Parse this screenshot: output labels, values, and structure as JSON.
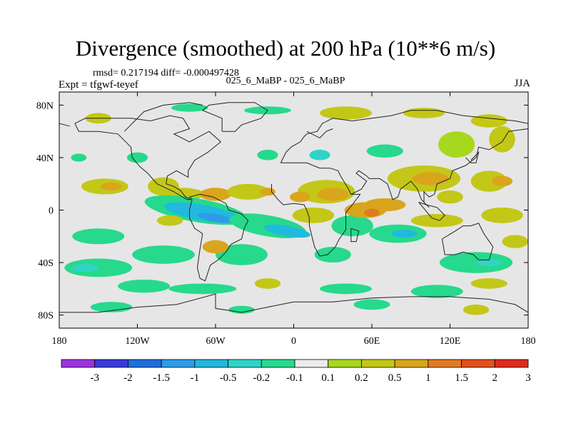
{
  "chart_data": {
    "type": "heatmap",
    "title": "Divergence (smoothed) at 200 hPa (10**6 m/s)",
    "stats_line": "rmsd= 0.217194 diff= -0.000497428",
    "expt_label": "Expt = tfgwf-teyef",
    "cases_label": "025_6_MaBP - 025_6_MaBP",
    "season": "JJA",
    "x_range": [
      -180,
      180
    ],
    "y_range": [
      -90,
      90
    ],
    "x_ticks": [
      {
        "value": -180,
        "label": "180"
      },
      {
        "value": -120,
        "label": "120W"
      },
      {
        "value": -60,
        "label": "60W"
      },
      {
        "value": 0,
        "label": "0"
      },
      {
        "value": 60,
        "label": "60E"
      },
      {
        "value": 120,
        "label": "120E"
      },
      {
        "value": 180,
        "label": "180"
      }
    ],
    "y_ticks": [
      {
        "value": 80,
        "label": "80N"
      },
      {
        "value": 40,
        "label": "40N"
      },
      {
        "value": 0,
        "label": "0"
      },
      {
        "value": -40,
        "label": "40S"
      },
      {
        "value": -80,
        "label": "80S"
      }
    ],
    "levels": [
      "-3",
      "-2",
      "-1.5",
      "-1",
      "-0.5",
      "-0.2",
      "-0.1",
      "0.1",
      "0.2",
      "0.5",
      "1",
      "1.5",
      "2",
      "3"
    ],
    "colors": [
      "#9c33e0",
      "#3a3ad8",
      "#1f6ee0",
      "#2f9be8",
      "#21b9dd",
      "#2fd4c6",
      "#26d98c",
      "#ececec",
      "#a6d81e",
      "#c3c717",
      "#d9a51c",
      "#e07a22",
      "#e2501d",
      "#e02a1f"
    ],
    "blobs": [
      {
        "lon": -150,
        "lat": 70,
        "rx": 10,
        "ry": 4,
        "cls": 9
      },
      {
        "lon": -80,
        "lat": 78,
        "rx": 14,
        "ry": 3,
        "cls": 6
      },
      {
        "lon": -20,
        "lat": 76,
        "rx": 18,
        "ry": 3,
        "cls": 6
      },
      {
        "lon": 40,
        "lat": 74,
        "rx": 20,
        "ry": 5,
        "cls": 9
      },
      {
        "lon": 100,
        "lat": 74,
        "rx": 16,
        "ry": 4,
        "cls": 9
      },
      {
        "lon": 150,
        "lat": 68,
        "rx": 14,
        "ry": 5,
        "cls": 9
      },
      {
        "lon": 160,
        "lat": 54,
        "rx": 10,
        "ry": 10,
        "cls": 9
      },
      {
        "lon": 125,
        "lat": 50,
        "rx": 14,
        "ry": 10,
        "cls": 8
      },
      {
        "lon": 70,
        "lat": 45,
        "rx": 14,
        "ry": 5,
        "cls": 6
      },
      {
        "lon": 20,
        "lat": 42,
        "rx": 8,
        "ry": 4,
        "cls": 5
      },
      {
        "lon": -20,
        "lat": 42,
        "rx": 8,
        "ry": 4,
        "cls": 6
      },
      {
        "lon": -120,
        "lat": 40,
        "rx": 8,
        "ry": 4,
        "cls": 6
      },
      {
        "lon": -165,
        "lat": 40,
        "rx": 6,
        "ry": 3,
        "cls": 6
      },
      {
        "lon": -145,
        "lat": 18,
        "rx": 18,
        "ry": 6,
        "cls": 9
      },
      {
        "lon": -140,
        "lat": 18,
        "rx": 8,
        "ry": 3,
        "cls": 10
      },
      {
        "lon": -100,
        "lat": 18,
        "rx": 12,
        "ry": 7,
        "cls": 9
      },
      {
        "lon": -85,
        "lat": 12,
        "rx": 16,
        "ry": 5,
        "cls": 9
      },
      {
        "lon": -60,
        "lat": 12,
        "rx": 12,
        "ry": 5,
        "cls": 10
      },
      {
        "lon": -35,
        "lat": 14,
        "rx": 16,
        "ry": 6,
        "cls": 9
      },
      {
        "lon": -20,
        "lat": 14,
        "rx": 6,
        "ry": 3,
        "cls": 10
      },
      {
        "lon": 25,
        "lat": 14,
        "rx": 22,
        "ry": 9,
        "cls": 9
      },
      {
        "lon": 30,
        "lat": 12,
        "rx": 12,
        "ry": 5,
        "cls": 10
      },
      {
        "lon": 5,
        "lat": 10,
        "rx": 8,
        "ry": 4,
        "cls": 10
      },
      {
        "lon": 100,
        "lat": 24,
        "rx": 28,
        "ry": 10,
        "cls": 9
      },
      {
        "lon": 105,
        "lat": 24,
        "rx": 14,
        "ry": 5,
        "cls": 10
      },
      {
        "lon": 150,
        "lat": 22,
        "rx": 14,
        "ry": 8,
        "cls": 9
      },
      {
        "lon": 160,
        "lat": 22,
        "rx": 8,
        "ry": 4,
        "cls": 10
      },
      {
        "lon": 70,
        "lat": 4,
        "rx": 16,
        "ry": 5,
        "cls": 10
      },
      {
        "lon": 120,
        "lat": 10,
        "rx": 10,
        "ry": 5,
        "cls": 9
      },
      {
        "lon": -75,
        "lat": 0,
        "rx": 40,
        "ry": 9,
        "cls": 6,
        "rot": 10
      },
      {
        "lon": -70,
        "lat": -2,
        "rx": 30,
        "ry": 6,
        "cls": 4,
        "rot": 10
      },
      {
        "lon": -60,
        "lat": -6,
        "rx": 14,
        "ry": 3,
        "cls": 3,
        "rot": 10
      },
      {
        "lon": -20,
        "lat": -12,
        "rx": 30,
        "ry": 8,
        "cls": 6,
        "rot": 10
      },
      {
        "lon": -5,
        "lat": -16,
        "rx": 18,
        "ry": 4,
        "cls": 4,
        "rot": 10
      },
      {
        "lon": 45,
        "lat": -12,
        "rx": 16,
        "ry": 8,
        "cls": 6
      },
      {
        "lon": 80,
        "lat": -18,
        "rx": 22,
        "ry": 7,
        "cls": 6
      },
      {
        "lon": 85,
        "lat": -18,
        "rx": 10,
        "ry": 3,
        "cls": 4
      },
      {
        "lon": -150,
        "lat": -20,
        "rx": 20,
        "ry": 6,
        "cls": 6
      },
      {
        "lon": -100,
        "lat": -34,
        "rx": 24,
        "ry": 7,
        "cls": 6
      },
      {
        "lon": -40,
        "lat": -34,
        "rx": 20,
        "ry": 8,
        "cls": 6
      },
      {
        "lon": 30,
        "lat": -34,
        "rx": 14,
        "ry": 6,
        "cls": 6
      },
      {
        "lon": 140,
        "lat": -40,
        "rx": 28,
        "ry": 8,
        "cls": 6
      },
      {
        "lon": 150,
        "lat": -40,
        "rx": 10,
        "ry": 3,
        "cls": 5
      },
      {
        "lon": -150,
        "lat": -44,
        "rx": 26,
        "ry": 7,
        "cls": 6
      },
      {
        "lon": -160,
        "lat": -44,
        "rx": 10,
        "ry": 3,
        "cls": 5
      },
      {
        "lon": -60,
        "lat": -28,
        "rx": 10,
        "ry": 5,
        "cls": 10
      },
      {
        "lon": 15,
        "lat": -4,
        "rx": 16,
        "ry": 6,
        "cls": 9
      },
      {
        "lon": 55,
        "lat": 0,
        "rx": 16,
        "ry": 6,
        "cls": 10
      },
      {
        "lon": 60,
        "lat": -2,
        "rx": 6,
        "ry": 3,
        "cls": 11
      },
      {
        "lon": -95,
        "lat": -8,
        "rx": 10,
        "ry": 4,
        "cls": 9
      },
      {
        "lon": 110,
        "lat": -8,
        "rx": 20,
        "ry": 5,
        "cls": 9
      },
      {
        "lon": 160,
        "lat": -4,
        "rx": 16,
        "ry": 6,
        "cls": 9
      },
      {
        "lon": 170,
        "lat": -24,
        "rx": 10,
        "ry": 5,
        "cls": 9
      },
      {
        "lon": -115,
        "lat": -58,
        "rx": 20,
        "ry": 5,
        "cls": 6
      },
      {
        "lon": -70,
        "lat": -60,
        "rx": 26,
        "ry": 4,
        "cls": 6
      },
      {
        "lon": -20,
        "lat": -56,
        "rx": 10,
        "ry": 4,
        "cls": 9
      },
      {
        "lon": 40,
        "lat": -60,
        "rx": 20,
        "ry": 4,
        "cls": 6
      },
      {
        "lon": 110,
        "lat": -62,
        "rx": 20,
        "ry": 5,
        "cls": 6
      },
      {
        "lon": 150,
        "lat": -56,
        "rx": 14,
        "ry": 4,
        "cls": 9
      },
      {
        "lon": -140,
        "lat": -74,
        "rx": 16,
        "ry": 4,
        "cls": 6
      },
      {
        "lon": -40,
        "lat": -76,
        "rx": 10,
        "ry": 3,
        "cls": 6
      },
      {
        "lon": 60,
        "lat": -72,
        "rx": 14,
        "ry": 4,
        "cls": 6
      },
      {
        "lon": 140,
        "lat": -76,
        "rx": 10,
        "ry": 4,
        "cls": 9
      }
    ],
    "coastlines": [
      [
        [
          -168,
          66
        ],
        [
          -160,
          70
        ],
        [
          -140,
          70
        ],
        [
          -125,
          70
        ],
        [
          -110,
          68
        ],
        [
          -95,
          72
        ],
        [
          -85,
          70
        ],
        [
          -80,
          62
        ],
        [
          -92,
          58
        ],
        [
          -80,
          52
        ],
        [
          -65,
          60
        ],
        [
          -56,
          52
        ],
        [
          -66,
          44
        ],
        [
          -76,
          38
        ],
        [
          -81,
          30
        ],
        [
          -81,
          25
        ],
        [
          -90,
          30
        ],
        [
          -97,
          26
        ],
        [
          -98,
          20
        ],
        [
          -92,
          18
        ],
        [
          -87,
          15
        ],
        [
          -83,
          10
        ],
        [
          -79,
          8
        ],
        [
          -82,
          8
        ],
        [
          -92,
          14
        ],
        [
          -105,
          20
        ],
        [
          -112,
          28
        ],
        [
          -118,
          33
        ],
        [
          -124,
          40
        ],
        [
          -125,
          48
        ],
        [
          -135,
          58
        ],
        [
          -150,
          60
        ],
        [
          -165,
          60
        ],
        [
          -168,
          66
        ]
      ],
      [
        [
          -80,
          10
        ],
        [
          -72,
          12
        ],
        [
          -62,
          10
        ],
        [
          -52,
          5
        ],
        [
          -50,
          0
        ],
        [
          -40,
          -3
        ],
        [
          -35,
          -8
        ],
        [
          -38,
          -14
        ],
        [
          -40,
          -22
        ],
        [
          -48,
          -26
        ],
        [
          -52,
          -32
        ],
        [
          -58,
          -38
        ],
        [
          -64,
          -42
        ],
        [
          -66,
          -48
        ],
        [
          -68,
          -54
        ],
        [
          -72,
          -52
        ],
        [
          -74,
          -44
        ],
        [
          -72,
          -30
        ],
        [
          -70,
          -18
        ],
        [
          -76,
          -14
        ],
        [
          -80,
          -6
        ],
        [
          -80,
          0
        ],
        [
          -78,
          8
        ],
        [
          -80,
          10
        ]
      ],
      [
        [
          -10,
          36
        ],
        [
          -6,
          44
        ],
        [
          -2,
          48
        ],
        [
          5,
          52
        ],
        [
          8,
          56
        ],
        [
          10,
          58
        ],
        [
          18,
          60
        ],
        [
          22,
          66
        ],
        [
          30,
          70
        ],
        [
          45,
          68
        ],
        [
          60,
          70
        ],
        [
          75,
          72
        ],
        [
          90,
          76
        ],
        [
          110,
          76
        ],
        [
          130,
          72
        ],
        [
          150,
          70
        ],
        [
          170,
          68
        ],
        [
          180,
          66
        ]
      ],
      [
        [
          -180,
          66
        ],
        [
          -172,
          64
        ]
      ],
      [
        [
          180,
          62
        ],
        [
          165,
          60
        ],
        [
          160,
          52
        ],
        [
          150,
          46
        ],
        [
          142,
          48
        ],
        [
          140,
          40
        ],
        [
          132,
          34
        ],
        [
          122,
          30
        ],
        [
          120,
          24
        ],
        [
          110,
          20
        ],
        [
          108,
          12
        ],
        [
          104,
          10
        ],
        [
          100,
          14
        ],
        [
          100,
          6
        ],
        [
          104,
          2
        ],
        [
          98,
          8
        ],
        [
          95,
          16
        ],
        [
          90,
          22
        ],
        [
          82,
          16
        ],
        [
          80,
          10
        ],
        [
          76,
          8
        ],
        [
          72,
          20
        ],
        [
          66,
          24
        ],
        [
          58,
          24
        ],
        [
          56,
          26
        ],
        [
          50,
          30
        ],
        [
          48,
          28
        ],
        [
          56,
          22
        ],
        [
          52,
          16
        ],
        [
          44,
          12
        ],
        [
          42,
          16
        ],
        [
          36,
          26
        ],
        [
          34,
          30
        ],
        [
          28,
          32
        ],
        [
          20,
          32
        ],
        [
          10,
          36
        ],
        [
          0,
          36
        ],
        [
          -10,
          36
        ]
      ],
      [
        [
          -17,
          20
        ],
        [
          -17,
          14
        ],
        [
          -12,
          8
        ],
        [
          -8,
          4
        ],
        [
          0,
          5
        ],
        [
          8,
          4
        ],
        [
          10,
          0
        ],
        [
          12,
          -6
        ],
        [
          12,
          -12
        ],
        [
          14,
          -20
        ],
        [
          16,
          -28
        ],
        [
          20,
          -35
        ],
        [
          26,
          -34
        ],
        [
          32,
          -28
        ],
        [
          35,
          -22
        ],
        [
          40,
          -15
        ],
        [
          40,
          -8
        ],
        [
          40,
          -2
        ],
        [
          45,
          4
        ],
        [
          51,
          12
        ],
        [
          44,
          12
        ]
      ],
      [
        [
          114,
          -22
        ],
        [
          116,
          -34
        ],
        [
          124,
          -34
        ],
        [
          130,
          -32
        ],
        [
          138,
          -34
        ],
        [
          142,
          -38
        ],
        [
          150,
          -38
        ],
        [
          153,
          -28
        ],
        [
          146,
          -18
        ],
        [
          142,
          -10
        ],
        [
          136,
          -12
        ],
        [
          130,
          -12
        ],
        [
          124,
          -16
        ],
        [
          114,
          -22
        ]
      ],
      [
        [
          -180,
          -78
        ],
        [
          -150,
          -78
        ],
        [
          -120,
          -74
        ],
        [
          -90,
          -72
        ],
        [
          -60,
          -64
        ],
        [
          -60,
          -75
        ],
        [
          -40,
          -78
        ],
        [
          -20,
          -74
        ],
        [
          0,
          -70
        ],
        [
          30,
          -70
        ],
        [
          60,
          -67
        ],
        [
          90,
          -66
        ],
        [
          120,
          -66
        ],
        [
          150,
          -68
        ],
        [
          170,
          -72
        ],
        [
          180,
          -78
        ]
      ],
      [
        [
          -55,
          60
        ],
        [
          -45,
          60
        ],
        [
          -40,
          65
        ],
        [
          -25,
          70
        ],
        [
          -20,
          76
        ],
        [
          -30,
          82
        ],
        [
          -50,
          82
        ],
        [
          -65,
          80
        ],
        [
          -70,
          76
        ],
        [
          -55,
          70
        ],
        [
          -55,
          60
        ]
      ],
      [
        [
          -130,
          60
        ],
        [
          -115,
          75
        ],
        [
          -100,
          80
        ],
        [
          -80,
          82
        ],
        [
          -70,
          80
        ]
      ],
      [
        [
          10,
          60
        ],
        [
          20,
          55
        ],
        [
          25,
          60
        ],
        [
          30,
          62
        ]
      ],
      [
        [
          132,
          40
        ],
        [
          136,
          36
        ],
        [
          140,
          36
        ],
        [
          142,
          44
        ],
        [
          140,
          42
        ],
        [
          136,
          38
        ]
      ],
      [
        [
          96,
          6
        ],
        [
          106,
          -6
        ],
        [
          112,
          -8
        ],
        [
          116,
          -4
        ],
        [
          110,
          2
        ],
        [
          102,
          4
        ],
        [
          96,
          6
        ]
      ],
      [
        [
          44,
          -14
        ],
        [
          50,
          -16
        ],
        [
          48,
          -24
        ],
        [
          44,
          -24
        ],
        [
          44,
          -14
        ]
      ]
    ]
  }
}
